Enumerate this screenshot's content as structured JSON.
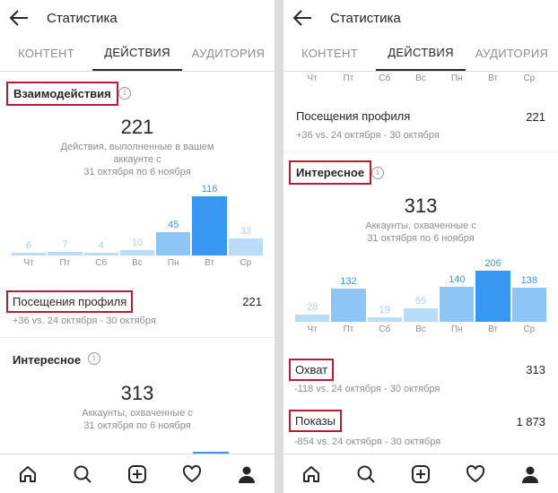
{
  "colors": {
    "bar_low": "#b9dcfa",
    "bar_mid": "#8cc5f6",
    "bar_high": "#3897f0",
    "label_low": "#a8cfee",
    "label_high": "#3897f0"
  },
  "left": {
    "header": {
      "title": "Статистика",
      "back_icon": "arrow-left-icon"
    },
    "tabs": [
      "КОНТЕНТ",
      "ДЕЙСТВИЯ",
      "АУДИТОРИЯ"
    ],
    "interactions": {
      "title": "Взаимодействия",
      "total": "221",
      "desc_line1": "Действия, выполненные в вашем",
      "desc_line2": "аккаунте с",
      "desc_line3": "31 октября по 6 ноября"
    },
    "chart_data": {
      "type": "bar",
      "categories": [
        "Чт",
        "Пт",
        "Сб",
        "Вс",
        "Пн",
        "Вт",
        "Ср"
      ],
      "values": [
        6,
        7,
        4,
        10,
        45,
        116,
        33
      ]
    },
    "profile_visits": {
      "label": "Посещения профиля",
      "value": "221",
      "change": "+36 vs. 24 октября - 30 октября"
    },
    "discovery": {
      "title": "Интересное",
      "total": "313",
      "desc_line1": "Аккаунты, охваченные с",
      "desc_line2": "31 октября по 6 ноября"
    }
  },
  "right": {
    "header": {
      "title": "Статистика",
      "back_icon": "arrow-left-icon"
    },
    "tabs": [
      "КОНТЕНТ",
      "ДЕЙСТВИЯ",
      "АУДИТОРИЯ"
    ],
    "top_days": [
      "Чт",
      "Пт",
      "Сб",
      "Вс",
      "Пн",
      "Вт",
      "Ср"
    ],
    "profile_visits": {
      "label": "Посещения профиля",
      "value": "221",
      "change": "+36 vs. 24 октября - 30 октября"
    },
    "discovery": {
      "title": "Интересное",
      "total": "313",
      "desc_line1": "Аккаунты, охваченные с",
      "desc_line2": "31 октября по 6 ноября"
    },
    "chart_data": {
      "type": "bar",
      "categories": [
        "Чт",
        "Пт",
        "Сб",
        "Вс",
        "Пн",
        "Вт",
        "Ср"
      ],
      "values": [
        28,
        132,
        19,
        55,
        140,
        206,
        138
      ]
    },
    "reach": {
      "label": "Охват",
      "value": "313",
      "change": "-118 vs. 24 октября - 30 октября"
    },
    "impressions": {
      "label": "Показы",
      "value": "1 873",
      "change": "-854 vs. 24 октября - 30 октября"
    }
  },
  "bottom_nav": [
    "home-icon",
    "search-icon",
    "add-post-icon",
    "heart-icon",
    "profile-icon"
  ]
}
